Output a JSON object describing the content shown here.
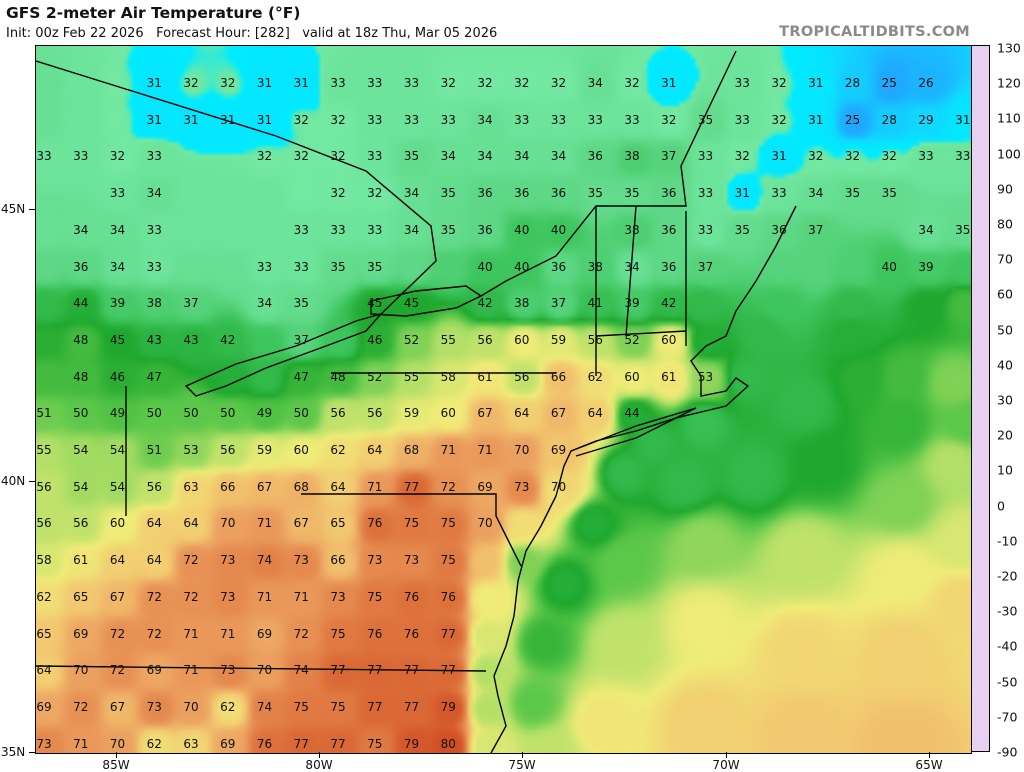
{
  "header": {
    "title": "GFS 2-meter Air Temperature (°F)",
    "subtitle": "Init: 00z Feb 22 2026   Forecast Hour: [282]   valid at 18z Thu, Mar 05 2026",
    "site": "TROPICALTIDBITS.COM"
  },
  "map": {
    "lat_labels": [
      "45N",
      "40N",
      "35N"
    ],
    "lon_labels": [
      "85W",
      "80W",
      "75W",
      "70W",
      "65W"
    ],
    "temperature_grid": [
      [
        null,
        null,
        null,
        31,
        32,
        32,
        31,
        31,
        33,
        33,
        33,
        32,
        32,
        32,
        32,
        34,
        32,
        31,
        null,
        33,
        32,
        31,
        28,
        25,
        26,
        null
      ],
      [
        null,
        null,
        null,
        31,
        31,
        31,
        31,
        32,
        32,
        33,
        33,
        33,
        34,
        33,
        33,
        33,
        33,
        32,
        35,
        33,
        32,
        31,
        25,
        28,
        29,
        31
      ],
      [
        33,
        33,
        32,
        33,
        null,
        null,
        32,
        32,
        32,
        33,
        35,
        34,
        34,
        34,
        34,
        36,
        38,
        37,
        33,
        32,
        31,
        32,
        32,
        32,
        33,
        33
      ],
      [
        null,
        null,
        33,
        34,
        null,
        null,
        null,
        null,
        32,
        32,
        34,
        35,
        36,
        36,
        36,
        35,
        35,
        36,
        33,
        31,
        33,
        34,
        35,
        35,
        null,
        null
      ],
      [
        null,
        34,
        34,
        33,
        null,
        null,
        null,
        33,
        33,
        33,
        34,
        35,
        36,
        40,
        40,
        null,
        38,
        36,
        33,
        35,
        36,
        37,
        null,
        null,
        34,
        35
      ],
      [
        null,
        36,
        34,
        33,
        null,
        null,
        33,
        33,
        35,
        35,
        null,
        null,
        40,
        40,
        36,
        38,
        34,
        36,
        37,
        null,
        null,
        null,
        null,
        40,
        39,
        null
      ],
      [
        null,
        44,
        39,
        38,
        37,
        null,
        34,
        35,
        null,
        45,
        45,
        null,
        42,
        38,
        37,
        41,
        39,
        42,
        null,
        null,
        null,
        null,
        null,
        null,
        null,
        null
      ],
      [
        null,
        48,
        45,
        43,
        43,
        42,
        null,
        37,
        null,
        46,
        52,
        55,
        56,
        60,
        59,
        56,
        52,
        60,
        null,
        null,
        null,
        null,
        null,
        null,
        null,
        null
      ],
      [
        null,
        48,
        46,
        47,
        null,
        null,
        null,
        47,
        48,
        52,
        55,
        58,
        61,
        56,
        66,
        62,
        60,
        61,
        53,
        null,
        null,
        null,
        null,
        null,
        null,
        null
      ],
      [
        51,
        50,
        49,
        50,
        50,
        50,
        49,
        50,
        56,
        56,
        59,
        60,
        67,
        64,
        67,
        64,
        44,
        null,
        null,
        null,
        null,
        null,
        null,
        null,
        null,
        null
      ],
      [
        55,
        54,
        54,
        51,
        53,
        56,
        59,
        60,
        62,
        64,
        68,
        71,
        71,
        70,
        69,
        null,
        null,
        null,
        null,
        null,
        null,
        null,
        null,
        null,
        null,
        null
      ],
      [
        56,
        54,
        54,
        56,
        63,
        66,
        67,
        68,
        64,
        71,
        77,
        72,
        69,
        73,
        70,
        null,
        null,
        null,
        null,
        null,
        null,
        null,
        null,
        null,
        null,
        null
      ],
      [
        56,
        56,
        60,
        64,
        64,
        70,
        71,
        67,
        65,
        76,
        75,
        75,
        70,
        null,
        null,
        null,
        null,
        null,
        null,
        null,
        null,
        null,
        null,
        null,
        null,
        null
      ],
      [
        58,
        61,
        64,
        64,
        72,
        73,
        74,
        73,
        66,
        73,
        73,
        75,
        null,
        null,
        null,
        null,
        null,
        null,
        null,
        null,
        null,
        null,
        null,
        null,
        null,
        null
      ],
      [
        62,
        65,
        67,
        72,
        72,
        73,
        71,
        71,
        73,
        75,
        76,
        76,
        null,
        null,
        null,
        null,
        null,
        null,
        null,
        null,
        null,
        null,
        null,
        null,
        null,
        null
      ],
      [
        65,
        69,
        72,
        72,
        71,
        71,
        69,
        72,
        75,
        76,
        76,
        77,
        null,
        null,
        null,
        null,
        null,
        null,
        null,
        null,
        null,
        null,
        null,
        null,
        null,
        null
      ],
      [
        64,
        70,
        72,
        69,
        71,
        73,
        70,
        74,
        77,
        77,
        77,
        77,
        null,
        null,
        null,
        null,
        null,
        null,
        null,
        null,
        null,
        null,
        null,
        null,
        null,
        null
      ],
      [
        69,
        72,
        67,
        73,
        70,
        62,
        74,
        75,
        75,
        77,
        77,
        79,
        null,
        null,
        null,
        null,
        null,
        null,
        null,
        null,
        null,
        null,
        null,
        null,
        null,
        null
      ],
      [
        73,
        71,
        70,
        62,
        63,
        69,
        76,
        77,
        77,
        75,
        79,
        80,
        null,
        null,
        null,
        null,
        null,
        null,
        null,
        null,
        null,
        null,
        null,
        null,
        null,
        null
      ]
    ]
  },
  "colorbar": {
    "labels": [
      "130",
      "120",
      "110",
      "100",
      "90",
      "80",
      "70",
      "60",
      "50",
      "40",
      "30",
      "20",
      "10",
      "0",
      "-10",
      "-20",
      "-30",
      "-40",
      "-50",
      "-70",
      "-90"
    ],
    "range": [
      -90,
      130
    ]
  },
  "colors": {
    "freezing_contour": "#ff5050",
    "borders": "#000000",
    "county_lines": "#7a7a7a",
    "site_label": "#8a8a8a"
  }
}
